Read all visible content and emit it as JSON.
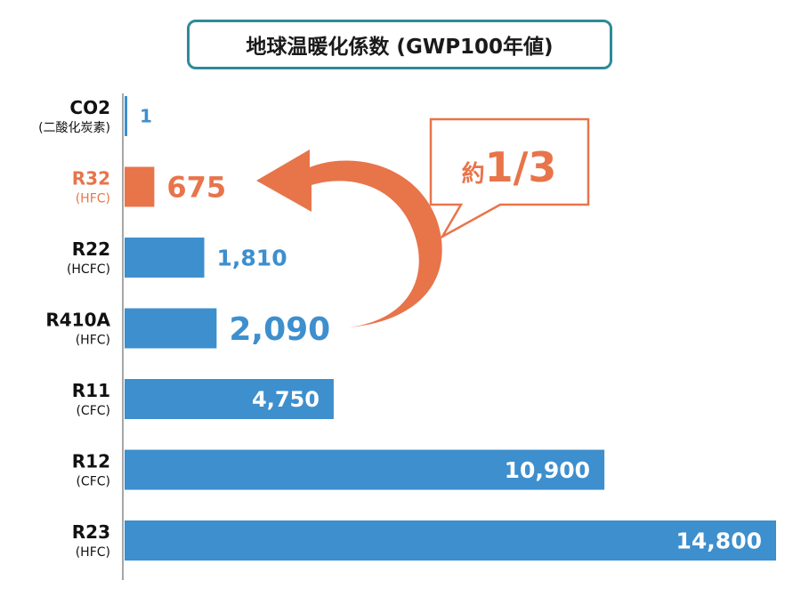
{
  "chart_data": {
    "type": "bar",
    "orientation": "horizontal",
    "title": "地球温暖化係数 (GWP100年値)",
    "categories": [
      {
        "name": "CO2",
        "sub": "(二酸化炭素)"
      },
      {
        "name": "R32",
        "sub": "(HFC)"
      },
      {
        "name": "R22",
        "sub": "(HCFC)"
      },
      {
        "name": "R410A",
        "sub": "(HFC)"
      },
      {
        "name": "R11",
        "sub": "(CFC)"
      },
      {
        "name": "R12",
        "sub": "(CFC)"
      },
      {
        "name": "R23",
        "sub": "(HFC)"
      }
    ],
    "values": [
      1,
      675,
      1810,
      2090,
      4750,
      10900,
      14800
    ],
    "value_labels": [
      "1",
      "675",
      "1,810",
      "2,090",
      "4,750",
      "10,900",
      "14,800"
    ],
    "highlight_index": 1,
    "annotation": "約1/3",
    "xlim": [
      0,
      14800
    ],
    "grid": false,
    "colors": {
      "bar": "#3d8fce",
      "highlight": "#e8744a",
      "title_border": "#2f8a99",
      "axis": "#888888"
    }
  }
}
